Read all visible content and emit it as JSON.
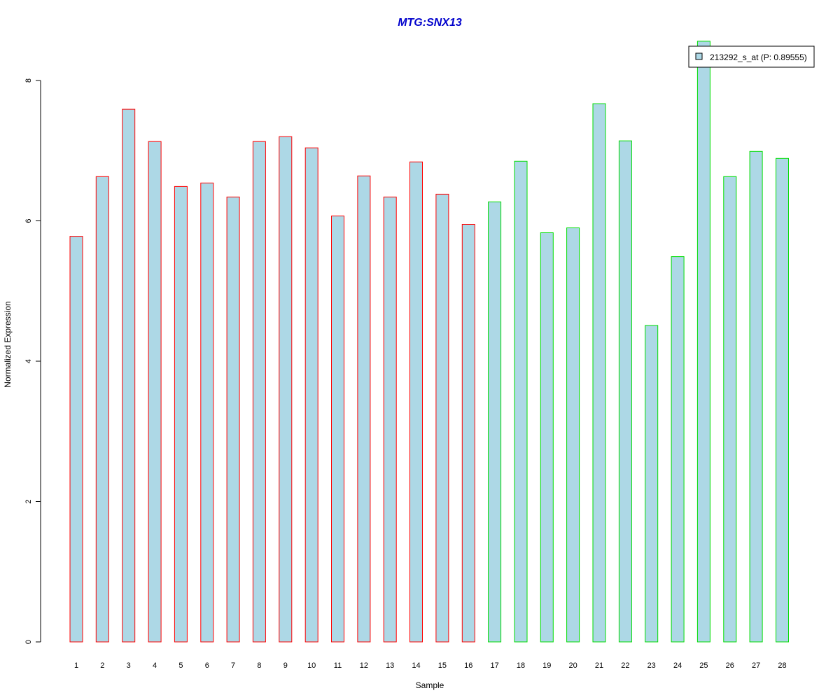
{
  "chart_data": {
    "type": "bar",
    "title": "MTG:SNX13",
    "title_color": "#0000CC",
    "xlabel": "Sample",
    "ylabel": "Normalized Expression",
    "ylim": [
      0,
      8.5
    ],
    "yticks": [
      0,
      2,
      4,
      6,
      8
    ],
    "grid": false,
    "legend_position": "top-right",
    "bar_fill_color": "#ADD8E6",
    "categories": [
      "1",
      "2",
      "3",
      "4",
      "5",
      "6",
      "7",
      "8",
      "9",
      "10",
      "11",
      "12",
      "13",
      "14",
      "15",
      "16",
      "17",
      "18",
      "19",
      "20",
      "21",
      "22",
      "23",
      "24",
      "25",
      "26",
      "27",
      "28"
    ],
    "series": [
      {
        "name": "213292_s_at (P: 0.89555)",
        "values": [
          5.78,
          6.63,
          7.59,
          7.13,
          6.49,
          6.54,
          6.34,
          7.13,
          7.2,
          7.04,
          6.07,
          6.64,
          6.34,
          6.84,
          6.38,
          5.95,
          6.27,
          6.85,
          5.83,
          5.9,
          7.67,
          7.14,
          4.51,
          5.49,
          8.56,
          6.63,
          6.99,
          6.89
        ],
        "groups": [
          1,
          1,
          1,
          1,
          1,
          1,
          1,
          1,
          1,
          1,
          1,
          1,
          1,
          1,
          1,
          1,
          2,
          2,
          2,
          2,
          2,
          2,
          2,
          2,
          2,
          2,
          2,
          2
        ]
      }
    ],
    "group_border_colors": {
      "1": "#FF0000",
      "2": "#00DD00"
    }
  }
}
